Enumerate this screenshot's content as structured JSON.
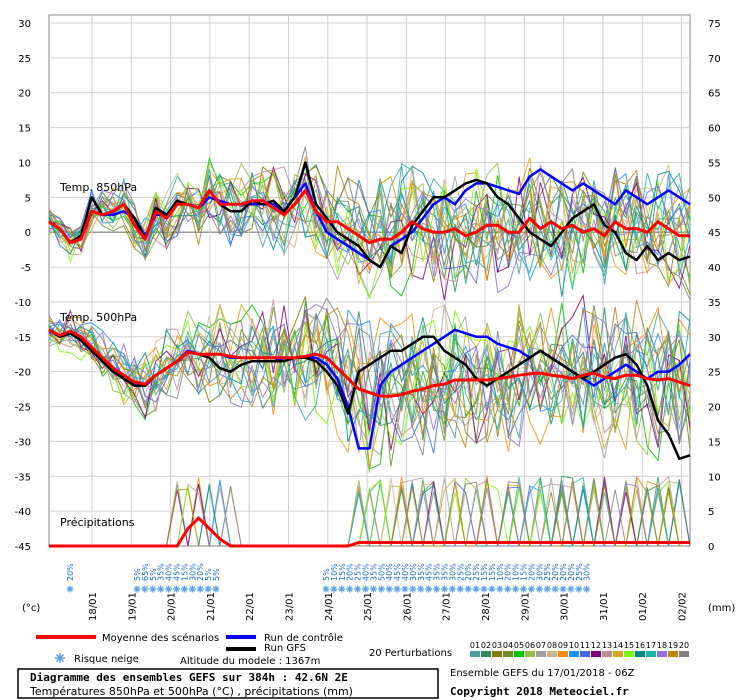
{
  "chart_data": {
    "type": "line",
    "x_dates": [
      "18/01",
      "19/01",
      "20/01",
      "21/01",
      "22/01",
      "23/01",
      "24/01",
      "25/01",
      "26/01",
      "27/01",
      "28/01",
      "29/01",
      "30/01",
      "31/01",
      "01/02",
      "02/02"
    ],
    "left_axis_unit": "(°c)",
    "right_axis_unit": "(mm)",
    "left_ticks": [
      30,
      25,
      20,
      15,
      10,
      5,
      0,
      -5,
      -10,
      -15,
      -20,
      -25,
      -30,
      -35,
      -40,
      -45
    ],
    "right_ticks": [
      75,
      70,
      65,
      60,
      55,
      50,
      45,
      40,
      35,
      30,
      25,
      20,
      15,
      10,
      5,
      0
    ],
    "ylim_left": [
      -45,
      30
    ],
    "ylim_right": [
      0,
      75
    ],
    "section_labels": {
      "t850": "Temp. 850hPa",
      "t500": "Temp. 500hPa",
      "precip": "Précipitations"
    },
    "series": [
      {
        "name": "Moyenne des scénarios",
        "color": "#ff0000",
        "t850": [
          1.5,
          0.5,
          -1.5,
          -1,
          3,
          2.5,
          3,
          4,
          1,
          -1,
          3,
          2,
          4,
          4,
          3.5,
          6,
          4,
          4,
          4,
          4.5,
          4.5,
          3.5,
          2.5,
          4,
          6,
          3,
          1.5,
          1.5,
          0.5,
          -0.5,
          -1.5,
          -1,
          -1,
          0,
          1.5,
          0.5,
          0,
          0,
          0.5,
          -0.5,
          0,
          1,
          1,
          0,
          0,
          2,
          0.5,
          1.5,
          0.5,
          1,
          0,
          0.5,
          -0.5,
          1.5,
          0.5,
          0.5,
          0,
          1.5,
          0.5,
          -0.5,
          -0.5
        ],
        "t500": [
          -14,
          -14.8,
          -14.2,
          -15,
          -16.5,
          -18,
          -19.5,
          -20.5,
          -21.5,
          -21.8,
          -20.5,
          -19.5,
          -18.5,
          -17.2,
          -17.5,
          -17.5,
          -17.5,
          -17.8,
          -18,
          -18,
          -18,
          -18,
          -18,
          -18,
          -17.8,
          -17.5,
          -18,
          -19.5,
          -21,
          -22.5,
          -23,
          -23.5,
          -23.5,
          -23.3,
          -22.8,
          -22.5,
          -22,
          -21.8,
          -21.2,
          -21.2,
          -21.2,
          -21.2,
          -21,
          -20.8,
          -20.5,
          -20.3,
          -20.2,
          -20.5,
          -20.7,
          -21,
          -20.5,
          -20.2,
          -20.8,
          -21,
          -20.5,
          -20.5,
          -21,
          -21.2,
          -21,
          -21.5,
          -22
        ]
      },
      {
        "name": "Run de contrôle",
        "color": "#0000ff",
        "t850": [
          1.5,
          0.5,
          -1.5,
          -0.5,
          3,
          2.5,
          2.5,
          3,
          2,
          -0.5,
          2.5,
          2.5,
          4,
          4,
          3.5,
          5,
          4.5,
          4,
          4,
          4,
          4,
          4,
          3,
          5,
          7,
          3,
          0,
          -1,
          -2,
          -3,
          -4,
          -5,
          -2,
          -1,
          0,
          2,
          4,
          5,
          4,
          6,
          7,
          7,
          6.5,
          6,
          5.5,
          8,
          9,
          8,
          7,
          6,
          7,
          6,
          5,
          4,
          6,
          5,
          4,
          5,
          6,
          5,
          4
        ],
        "t500": [
          -14,
          -15,
          -14.5,
          -15.5,
          -17,
          -18.5,
          -20,
          -21,
          -22,
          -22,
          -20.5,
          -19.5,
          -18.5,
          -17,
          -17.5,
          -17.5,
          -17.5,
          -18,
          -18,
          -18,
          -18,
          -18,
          -18.5,
          -18,
          -18,
          -18,
          -19,
          -21,
          -25,
          -31,
          -31,
          -22,
          -20,
          -19,
          -18,
          -17,
          -16,
          -15,
          -14,
          -14.5,
          -15,
          -15,
          -16,
          -16.5,
          -17,
          -18,
          -17,
          -18,
          -19,
          -20,
          -21,
          -22,
          -21,
          -20,
          -19,
          -20,
          -21,
          -20,
          -20,
          -19,
          -17.5
        ]
      },
      {
        "name": "Run GFS",
        "color": "#000000",
        "t850": [
          1.5,
          0.5,
          -1.5,
          -0.5,
          5,
          2.5,
          3,
          4,
          2,
          -1,
          3.5,
          2.5,
          4.5,
          4,
          3.5,
          6,
          4,
          3,
          3,
          4.5,
          4,
          4.5,
          3,
          5,
          10,
          4,
          2,
          0,
          -1,
          -2,
          -4,
          -5,
          -2,
          -3,
          1,
          3,
          5,
          5,
          6,
          7,
          7.5,
          7,
          5,
          4,
          2,
          0,
          -1,
          -2,
          0,
          2,
          3,
          4,
          1,
          0,
          -3,
          -4,
          -2,
          -4,
          -3,
          -4,
          -3.5
        ],
        "t500": [
          -14,
          -15,
          -14.5,
          -15.5,
          -17,
          -18.5,
          -20,
          -21,
          -22,
          -22,
          -20.5,
          -19.5,
          -18.5,
          -17.2,
          -17.5,
          -18,
          -19.5,
          -20,
          -19,
          -18.5,
          -18.5,
          -18.5,
          -18.5,
          -18,
          -18,
          -18.5,
          -20,
          -22,
          -26,
          -20,
          -19,
          -18,
          -17,
          -17,
          -16,
          -15,
          -15,
          -17,
          -18,
          -19,
          -21,
          -22,
          -21,
          -20,
          -19,
          -18,
          -17,
          -18,
          -19,
          -20,
          -21,
          -20,
          -19,
          -18,
          -17.5,
          -19,
          -22,
          -27,
          -29,
          -32.5,
          -32
        ]
      }
    ],
    "snow_risk_labels": [
      "20%",
      "5%",
      "65%",
      "5%",
      "35%",
      "40%",
      "45%",
      "15%",
      "30%",
      "20%",
      "5%",
      "5%",
      "5%",
      "10%",
      "15%",
      "20%",
      "25%",
      "40%",
      "35%",
      "50%",
      "40%",
      "45%",
      "40%",
      "30%",
      "35%",
      "45%",
      "35%",
      "35%",
      "30%",
      "25%",
      "20%",
      "25%",
      "15%",
      "15%",
      "10%",
      "20%",
      "10%",
      "15%",
      "20%",
      "30%",
      "25%",
      "20%",
      "20%",
      "20%",
      "25%",
      "30%"
    ]
  },
  "legend": {
    "mean": "Moyenne des scénarios",
    "control": "Run de contrôle",
    "gfs": "Run GFS",
    "snow_risk": "Risque neige",
    "altitude": "Altitude du modele : 1367m",
    "perturbations": "20 Perturbations",
    "perturbation_ids": [
      "01",
      "02",
      "03",
      "04",
      "05",
      "06",
      "07",
      "08",
      "09",
      "10",
      "11",
      "12",
      "13",
      "14",
      "15",
      "16",
      "17",
      "18",
      "19",
      "20"
    ],
    "perturbation_colors": [
      "#4aa0a0",
      "#2e8b57",
      "#808000",
      "#6b8e23",
      "#00c000",
      "#90c040",
      "#a0a0a0",
      "#d2b48c",
      "#ff8c00",
      "#1e90ff",
      "#4169e1",
      "#800080",
      "#bc8f8f",
      "#daa520",
      "#7cfc00",
      "#008b8b",
      "#20b2aa",
      "#9370db",
      "#b8860b",
      "#808080"
    ]
  },
  "footer": {
    "title_line1": "Diagramme des ensembles GEFS sur 384h : 42.6N 2E",
    "title_line2": "Températures 850hPa et 500hPa (°C) , précipitations (mm)",
    "run_info": "Ensemble GEFS du 17/01/2018 - 06Z",
    "copyright": "Copyright 2018 Meteociel.fr"
  },
  "colors": {
    "mean": "#ff0000",
    "control": "#0000ff",
    "gfs": "#000000",
    "grid": "#c8c8c8",
    "snow": "#5aa0e6"
  }
}
